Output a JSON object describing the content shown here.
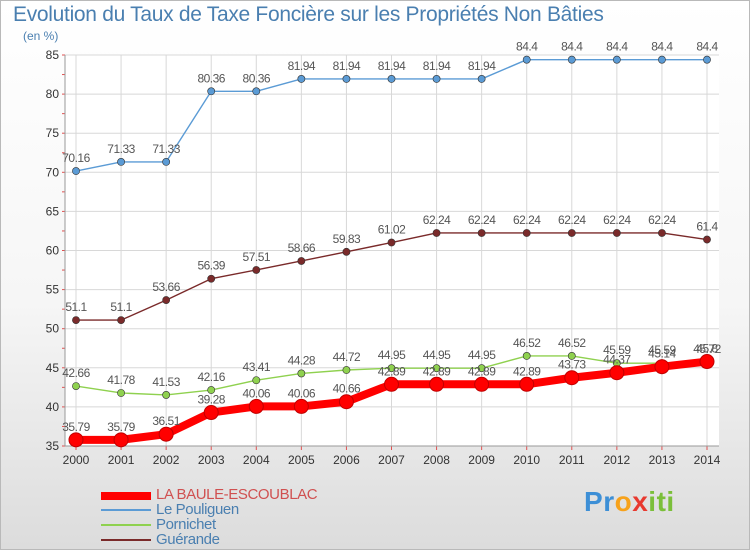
{
  "chart_data": {
    "type": "line",
    "title": "Evolution du Taux de Taxe Foncière sur les Propriétés Non Bâties",
    "ylabel": "(en %)",
    "xlabel": "",
    "ylim": [
      35,
      85
    ],
    "yticks": [
      35,
      40,
      45,
      50,
      55,
      60,
      65,
      70,
      75,
      80,
      85
    ],
    "categories": [
      "2000",
      "2001",
      "2002",
      "2003",
      "2004",
      "2005",
      "2006",
      "2007",
      "2008",
      "2009",
      "2010",
      "2011",
      "2012",
      "2013",
      "2014"
    ],
    "series": [
      {
        "name": "Le Pouliguen",
        "color": "#5b9bd5",
        "values": [
          70.16,
          71.33,
          71.33,
          80.36,
          80.36,
          81.94,
          81.94,
          81.94,
          81.94,
          81.94,
          84.4,
          84.4,
          84.4,
          84.4,
          84.4
        ],
        "labels": [
          "70.16",
          "71.33",
          "71.33",
          "80.36",
          "80.36",
          "81.94",
          "81.94",
          "81.94",
          "81.94",
          "81.94",
          "84.4",
          "84.4",
          "84.4",
          "84.4",
          "84.4"
        ]
      },
      {
        "name": "Guérande",
        "color": "#7a2a2a",
        "values": [
          51.1,
          51.1,
          53.66,
          56.39,
          57.51,
          58.66,
          59.83,
          61.02,
          62.24,
          62.24,
          62.24,
          62.24,
          62.24,
          62.24,
          61.4
        ],
        "labels": [
          "51.1",
          "51.1",
          "53.66",
          "56.39",
          "57.51",
          "58.66",
          "59.83",
          "61.02",
          "62.24",
          "62.24",
          "62.24",
          "62.24",
          "62.24",
          "62.24",
          "61.4"
        ]
      },
      {
        "name": "Pornichet",
        "color": "#8fd14f",
        "values": [
          42.66,
          41.78,
          41.53,
          42.16,
          43.41,
          44.28,
          44.72,
          44.95,
          44.95,
          44.95,
          46.52,
          46.52,
          45.59,
          45.59,
          45.72
        ],
        "labels": [
          "42.66",
          "41.78",
          "41.53",
          "42.16",
          "43.41",
          "44.28",
          "44.72",
          "44.95",
          "44.95",
          "44.95",
          "46.52",
          "46.52",
          "45.59",
          "45.59",
          "45.72"
        ]
      },
      {
        "name": "LA BAULE-ESCOUBLAC",
        "color": "#ff0000",
        "values": [
          35.79,
          35.79,
          36.51,
          39.28,
          40.06,
          40.06,
          40.66,
          42.89,
          42.89,
          42.89,
          42.89,
          43.73,
          44.37,
          45.14,
          45.8
        ],
        "labels": [
          "35.79",
          "35.79",
          "36.51",
          "39.28",
          "40.06",
          "40.06",
          "40.66",
          "42.89",
          "42.89",
          "42.89",
          "42.89",
          "43.73",
          "44.37",
          "45.14",
          "45.8"
        ]
      }
    ]
  },
  "legend": {
    "items": [
      {
        "label": "LA BAULE-ESCOUBLAC",
        "color": "#ff0000"
      },
      {
        "label": "Le Pouliguen",
        "color": "#5b9bd5"
      },
      {
        "label": "Pornichet",
        "color": "#8fd14f"
      },
      {
        "label": "Guérande",
        "color": "#7a2a2a"
      }
    ]
  },
  "brand": {
    "letters": [
      "P",
      "r",
      "o",
      "x",
      "i",
      "t",
      "i"
    ],
    "colors": [
      "#3d8fd6",
      "#3d8fd6",
      "#f7a21b",
      "#e8392f",
      "#7bbf3a",
      "#7bbf3a",
      "#7bbf3a"
    ]
  }
}
